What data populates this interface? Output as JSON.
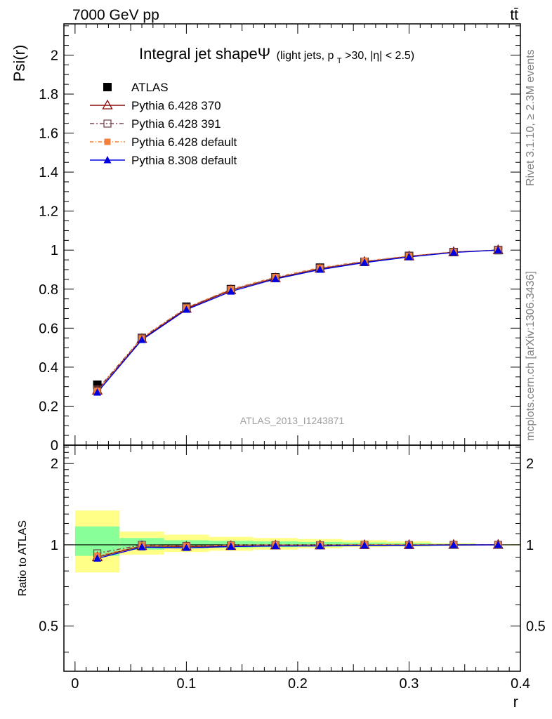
{
  "header": {
    "left": "7000 GeV pp",
    "right": "tt̄"
  },
  "side_labels": {
    "rivet": "Rivet 3.1.10, ≥ 2.3M events",
    "mcplots": "mcplots.cern.ch [arXiv:1306.3436]"
  },
  "watermark": "ATLAS_2013_I1243871",
  "colors": {
    "atlas": "#000000",
    "py370": "#8b0a0a",
    "py391": "#7a4a50",
    "py_default": "#f0803c",
    "py8": "#0000e0",
    "band_outer": "#ffff88",
    "band_inner": "#88ff99"
  },
  "chart_data": [
    {
      "type": "line",
      "title_main": "Integral jet shapeΨ",
      "title_sub": "(light jets, p",
      "title_sub_T": "T",
      "title_sub_rest": ">30, |η| < 2.5)",
      "ylabel": "Psi(r)",
      "xlim": [
        -0.01,
        0.4
      ],
      "ylim": [
        0,
        2.16
      ],
      "yticks": [
        0,
        0.2,
        0.4,
        0.6,
        0.8,
        1,
        1.2,
        1.4,
        1.6,
        1.8,
        2
      ],
      "ytick_labels": [
        "0",
        "0.2",
        "0.4",
        "0.6",
        "0.8",
        "1",
        "1.2",
        "1.4",
        "1.6",
        "1.8",
        "2"
      ],
      "legend_position": "top-left",
      "x": [
        0.02,
        0.06,
        0.1,
        0.14,
        0.18,
        0.22,
        0.26,
        0.3,
        0.34,
        0.38
      ],
      "series": [
        {
          "name": "ATLAS",
          "marker": "square-filled",
          "values": [
            0.31,
            0.55,
            0.71,
            0.8,
            0.86,
            0.91,
            0.94,
            0.97,
            0.99,
            1.0
          ]
        },
        {
          "name": "Pythia 6.428 370",
          "marker": "triangle-open",
          "values": [
            0.28,
            0.545,
            0.7,
            0.795,
            0.856,
            0.905,
            0.94,
            0.968,
            0.99,
            1.0
          ]
        },
        {
          "name": "Pythia 6.428 391",
          "marker": "square-open",
          "values": [
            0.285,
            0.55,
            0.705,
            0.797,
            0.858,
            0.906,
            0.941,
            0.969,
            0.99,
            1.0
          ]
        },
        {
          "name": "Pythia 6.428 default",
          "marker": "square-small",
          "values": [
            0.28,
            0.548,
            0.705,
            0.8,
            0.862,
            0.91,
            0.944,
            0.97,
            0.991,
            1.0
          ]
        },
        {
          "name": "Pythia 8.308 default",
          "marker": "triangle-filled",
          "values": [
            0.27,
            0.54,
            0.695,
            0.788,
            0.852,
            0.9,
            0.936,
            0.965,
            0.988,
            1.0
          ]
        }
      ]
    },
    {
      "type": "line",
      "ylabel": "Ratio to ATLAS",
      "xlabel": "r",
      "xlim": [
        -0.01,
        0.4
      ],
      "xticks": [
        0,
        0.1,
        0.2,
        0.3,
        0.4
      ],
      "xtick_labels": [
        "0",
        "0.1",
        "0.2",
        "0.3",
        "0.4"
      ],
      "ylim": [
        0.34,
        2.34
      ],
      "yticks": [
        0.5,
        1,
        2
      ],
      "ytick_labels": [
        "0.5",
        "1",
        "2"
      ],
      "bands": {
        "edges": [
          0,
          0.04,
          0.08,
          0.12,
          0.16,
          0.2,
          0.24,
          0.28,
          0.32,
          0.36,
          0.4
        ],
        "outer_low": [
          0.79,
          0.92,
          0.94,
          0.95,
          0.96,
          0.97,
          0.98,
          0.985,
          0.99,
          0.995
        ],
        "outer_high": [
          1.34,
          1.12,
          1.09,
          1.07,
          1.06,
          1.05,
          1.04,
          1.03,
          1.015,
          1.005
        ],
        "inner_low": [
          0.91,
          0.96,
          0.97,
          0.975,
          0.98,
          0.985,
          0.99,
          0.993,
          0.996,
          0.998
        ],
        "inner_high": [
          1.17,
          1.06,
          1.04,
          1.035,
          1.03,
          1.025,
          1.02,
          1.015,
          1.008,
          1.003
        ]
      },
      "x": [
        0.02,
        0.06,
        0.1,
        0.14,
        0.18,
        0.22,
        0.26,
        0.3,
        0.34,
        0.38
      ],
      "series": [
        {
          "name": "Pythia 6.428 370",
          "marker": "triangle-open",
          "values": [
            0.9,
            0.99,
            0.985,
            0.99,
            0.995,
            0.995,
            0.998,
            0.998,
            1.0,
            1.0
          ]
        },
        {
          "name": "Pythia 6.428 391",
          "marker": "square-open",
          "values": [
            0.93,
            1.0,
            0.99,
            0.995,
            0.998,
            0.996,
            1.0,
            0.999,
            1.0,
            1.0
          ]
        },
        {
          "name": "Pythia 6.428 default",
          "marker": "square-small",
          "values": [
            0.91,
            0.995,
            0.99,
            0.998,
            1.0,
            0.998,
            1.002,
            1.0,
            1.0,
            1.0
          ]
        },
        {
          "name": "Pythia 8.308 default",
          "marker": "triangle-filled",
          "values": [
            0.89,
            0.98,
            0.975,
            0.985,
            0.99,
            0.99,
            0.995,
            0.995,
            0.998,
            1.0
          ]
        }
      ]
    }
  ]
}
